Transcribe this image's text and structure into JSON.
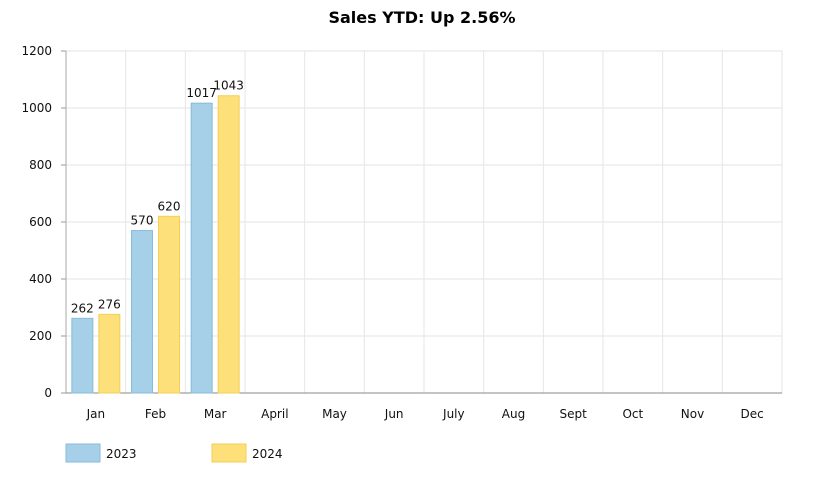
{
  "chart_data": {
    "type": "bar",
    "title": "Sales YTD: Up 2.56%",
    "categories": [
      "Jan",
      "Feb",
      "Mar",
      "April",
      "May",
      "Jun",
      "July",
      "Aug",
      "Sept",
      "Oct",
      "Nov",
      "Dec"
    ],
    "series": [
      {
        "name": "2023",
        "values": [
          262,
          570,
          1017,
          null,
          null,
          null,
          null,
          null,
          null,
          null,
          null,
          null
        ],
        "color": "#a6d0e8",
        "stroke": "#86bcdc"
      },
      {
        "name": "2024",
        "values": [
          276,
          620,
          1043,
          null,
          null,
          null,
          null,
          null,
          null,
          null,
          null,
          null
        ],
        "color": "#fde07a",
        "stroke": "#f3cf55"
      }
    ],
    "ylim": [
      0,
      1200
    ],
    "yticks": [
      "0",
      "200",
      "400",
      "600",
      "800",
      "1000",
      "1200"
    ],
    "grid": true,
    "legend_position": "bottom-left"
  }
}
